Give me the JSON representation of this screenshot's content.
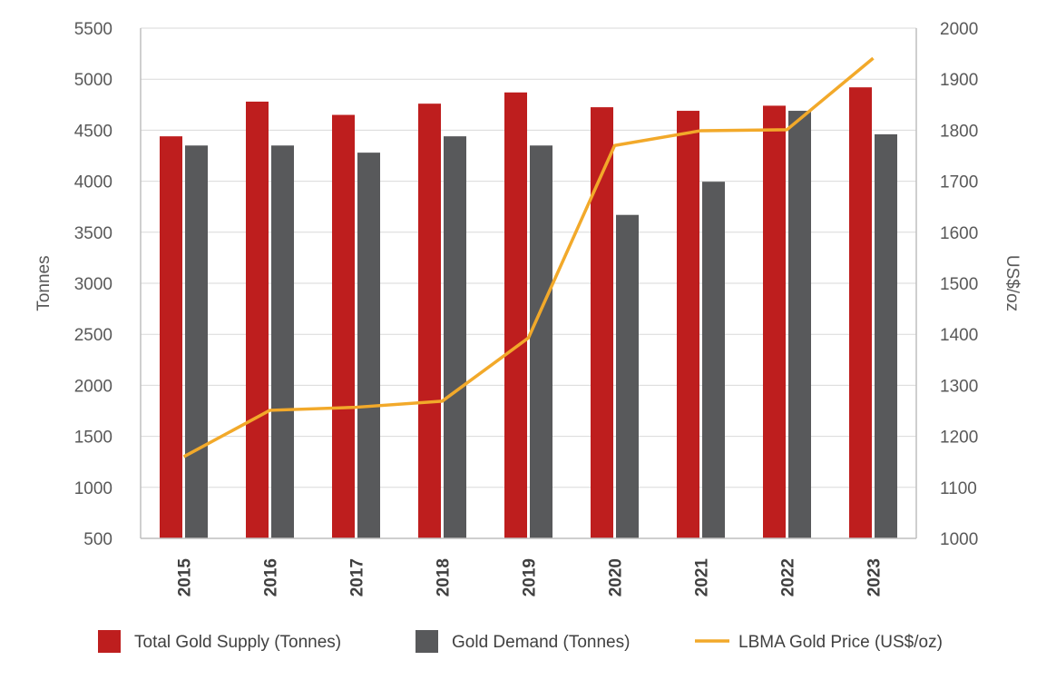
{
  "chart_data": {
    "type": "bar",
    "categories": [
      "2015",
      "2016",
      "2017",
      "2018",
      "2019",
      "2020",
      "2021",
      "2022",
      "2023"
    ],
    "series": [
      {
        "name": "Total Gold Supply (Tonnes)",
        "type": "bar",
        "axis": "left",
        "color": "#be1e1e",
        "values": [
          4440,
          4780,
          4650,
          4760,
          4870,
          4725,
          4690,
          4740,
          4920
        ]
      },
      {
        "name": "Gold Demand (Tonnes)",
        "type": "bar",
        "axis": "left",
        "color": "#58595b",
        "values": [
          4350,
          4350,
          4280,
          4440,
          4350,
          3670,
          3995,
          4690,
          4460
        ]
      },
      {
        "name": "LBMA Gold Price (US$/oz)",
        "type": "line",
        "axis": "right",
        "color": "#f2a92a",
        "values": [
          1160,
          1251,
          1257,
          1269,
          1393,
          1770,
          1799,
          1801,
          1941
        ]
      }
    ],
    "ylabel": "Tonnes",
    "y2label": "US$/oz",
    "ylim": [
      500,
      5500
    ],
    "y2lim": [
      1000,
      2000
    ],
    "yticks": [
      "5500",
      "5000",
      "4500",
      "4000",
      "3500",
      "3000",
      "2500",
      "2000",
      "1500",
      "1000",
      "500"
    ],
    "y2ticks": [
      "2000",
      "1900",
      "1800",
      "1700",
      "1600",
      "1500",
      "1400",
      "1300",
      "1200",
      "1100",
      "1000"
    ],
    "grid": true,
    "legend_position": "bottom"
  }
}
